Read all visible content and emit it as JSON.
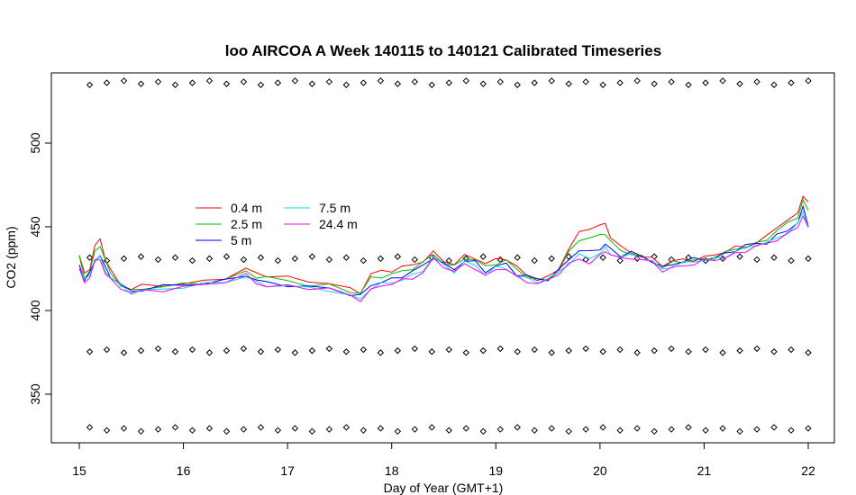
{
  "chart_data": {
    "type": "line",
    "title": "loo AIRCOA A  Week 140115 to 140121  Calibrated Timeseries",
    "xlabel": "Day of Year (GMT+1)",
    "ylabel": "CO2 (ppm)",
    "xlim": [
      15,
      22
    ],
    "ylim": [
      328,
      537
    ],
    "x_ticks": [
      "15",
      "16",
      "17",
      "18",
      "19",
      "20",
      "21",
      "22"
    ],
    "y_ticks": [
      "350",
      "400",
      "450",
      "500"
    ],
    "grid": false,
    "legend_position": "left-middle",
    "legend": [
      {
        "label": "0.4 m",
        "color": "#ff0000"
      },
      {
        "label": "2.5 m",
        "color": "#00c000"
      },
      {
        "label": "5 m",
        "color": "#0000ff"
      },
      {
        "label": "7.5 m",
        "color": "#00e0e0"
      },
      {
        "label": "24.4 m",
        "color": "#ff00ff"
      }
    ],
    "series_base": {
      "x": [
        15.0,
        15.05,
        15.1,
        15.15,
        15.2,
        15.25,
        15.3,
        15.4,
        15.5,
        15.6,
        15.8,
        16.0,
        16.2,
        16.4,
        16.6,
        16.7,
        16.8,
        17.0,
        17.2,
        17.4,
        17.6,
        17.7,
        17.8,
        17.9,
        18.0,
        18.1,
        18.2,
        18.3,
        18.4,
        18.5,
        18.6,
        18.7,
        18.8,
        18.9,
        19.0,
        19.1,
        19.2,
        19.3,
        19.4,
        19.5,
        19.6,
        19.7,
        19.8,
        19.9,
        20.0,
        20.05,
        20.1,
        20.2,
        20.3,
        20.4,
        20.5,
        20.6,
        20.7,
        20.8,
        20.9,
        21.0,
        21.1,
        21.2,
        21.3,
        21.4,
        21.5,
        21.6,
        21.7,
        21.8,
        21.9,
        21.95,
        22.0
      ],
      "y": [
        427,
        418,
        422,
        430,
        432,
        425,
        420,
        415,
        412,
        413,
        414,
        415,
        416,
        418,
        422,
        418,
        416,
        415,
        414,
        414,
        410,
        408,
        414,
        416,
        418,
        420,
        422,
        425,
        432,
        428,
        425,
        430,
        428,
        422,
        426,
        427,
        422,
        420,
        418,
        419,
        424,
        430,
        434,
        432,
        435,
        438,
        436,
        433,
        434,
        432,
        430,
        426,
        428,
        429,
        430,
        431,
        432,
        434,
        436,
        438,
        440,
        441,
        445,
        448,
        452,
        460,
        452
      ]
    },
    "series": [
      {
        "name": "0.4 m",
        "offsets": [
          6,
          4,
          4,
          8,
          10,
          6,
          4,
          1,
          1,
          1,
          1,
          1,
          2,
          2,
          2,
          4,
          5,
          5,
          4,
          2,
          2,
          3,
          8,
          8,
          6,
          5,
          5,
          5,
          3,
          2,
          2,
          2,
          4,
          6,
          5,
          4,
          3,
          1,
          1,
          1,
          1,
          6,
          12,
          18,
          16,
          14,
          8,
          4,
          1,
          1,
          1,
          1,
          1,
          1,
          1,
          1,
          1,
          1,
          1,
          1,
          1,
          3,
          5,
          5,
          6,
          10,
          12
        ]
      },
      {
        "name": "2.5 m",
        "offsets": [
          4,
          2,
          2,
          5,
          7,
          4,
          2,
          1,
          0,
          0,
          0,
          0,
          1,
          1,
          1,
          2,
          3,
          3,
          2,
          1,
          1,
          2,
          5,
          5,
          4,
          3,
          3,
          3,
          2,
          1,
          1,
          1,
          2,
          4,
          3,
          3,
          2,
          0,
          0,
          0,
          0,
          4,
          8,
          11,
          10,
          9,
          5,
          2,
          0,
          0,
          0,
          0,
          0,
          0,
          0,
          0,
          0,
          0,
          0,
          0,
          0,
          2,
          3,
          3,
          4,
          6,
          8
        ]
      },
      {
        "name": "5 m",
        "offsets": [
          0,
          0,
          0,
          1,
          1,
          0,
          0,
          0,
          0,
          0,
          0,
          0,
          0,
          0,
          0,
          0,
          0,
          0,
          0,
          0,
          0,
          0,
          1,
          1,
          1,
          1,
          1,
          1,
          0,
          0,
          0,
          0,
          0,
          1,
          1,
          1,
          0,
          0,
          0,
          0,
          0,
          1,
          2,
          2,
          2,
          2,
          1,
          0,
          0,
          0,
          0,
          0,
          0,
          0,
          0,
          0,
          0,
          0,
          0,
          0,
          0,
          0,
          0,
          0,
          0,
          1,
          0
        ]
      },
      {
        "name": "7.5 m",
        "offsets": [
          -1,
          -1,
          -1,
          0,
          0,
          -1,
          -1,
          -1,
          -1,
          -1,
          -1,
          -1,
          -1,
          -1,
          -1,
          -1,
          -1,
          -1,
          -1,
          -1,
          -1,
          -1,
          -1,
          -1,
          -1,
          -1,
          -1,
          -1,
          -1,
          -1,
          -1,
          -1,
          -1,
          -1,
          -1,
          -1,
          -1,
          -1,
          -1,
          -1,
          -1,
          -1,
          -1,
          -1,
          -1,
          -1,
          -1,
          -1,
          -1,
          -1,
          -1,
          -1,
          -1,
          -1,
          -1,
          -1,
          -1,
          -1,
          -1,
          -1,
          -1,
          -1,
          -1,
          -1,
          -1,
          -1,
          -2
        ]
      },
      {
        "name": "24.4 m",
        "offsets": [
          -2,
          -2,
          -2,
          -1,
          -1,
          -2,
          -2,
          -2,
          -2,
          -1,
          -1,
          -1,
          -1,
          -1,
          -1,
          -1,
          -1,
          -1,
          -1,
          -1,
          -1,
          -1,
          -2,
          -2,
          -2,
          -2,
          -2,
          -2,
          -2,
          -2,
          -2,
          -2,
          -2,
          -2,
          -2,
          -2,
          -2,
          -2,
          -2,
          -2,
          -2,
          -2,
          -3,
          -3,
          -3,
          -3,
          -2,
          -2,
          -2,
          -2,
          -2,
          -2,
          -2,
          -2,
          -2,
          -2,
          -2,
          -2,
          -2,
          -2,
          -2,
          -2,
          -2,
          -2,
          -2,
          -3,
          -4
        ]
      }
    ],
    "calibration_markers": {
      "levels": [
        536,
        431,
        376,
        329
      ],
      "x_start": 15.1,
      "x_end": 22.0,
      "count": 43
    }
  }
}
